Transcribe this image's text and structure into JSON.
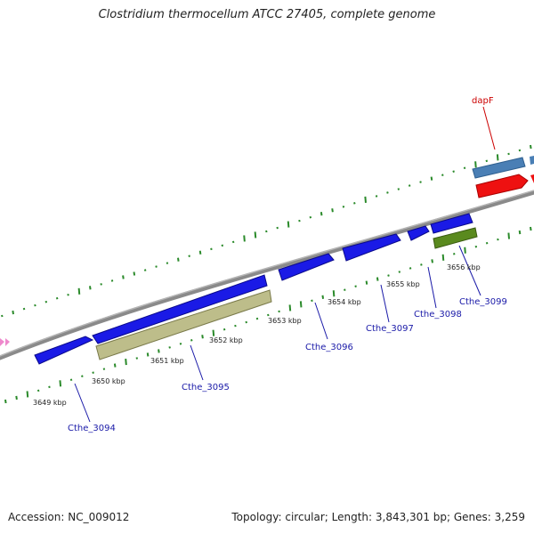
{
  "title": "Clostridium thermocellum ATCC 27405, complete genome",
  "accession": "Accession: NC_009012",
  "summary": "Topology: circular; Length: 3,843,301 bp; Genes: 3,259",
  "colors": {
    "backbone": "#8a8a8a",
    "cds_blue": "#1a1ae6",
    "gene_olive": "#bdbd8a",
    "gene_green": "#5a8a1e",
    "gene_steel": "#4a7fb5",
    "gene_red": "#ee1111",
    "marker_pink": "#ee88cc",
    "gc_ticks": "#2a8a2a",
    "gene_label": "#1a1aa8",
    "feature_label": "#cc0000"
  },
  "scale_labels": [
    "3649 kbp",
    "3650 kbp",
    "3651 kbp",
    "3652 kbp",
    "3653 kbp",
    "3654 kbp",
    "3655 kbp",
    "3656 kbp"
  ],
  "gene_labels": [
    "Cthe_3094",
    "Cthe_3095",
    "Cthe_3096",
    "Cthe_3097",
    "Cthe_3098",
    "Cthe_3099"
  ],
  "feature_labels": [
    "dapF"
  ]
}
